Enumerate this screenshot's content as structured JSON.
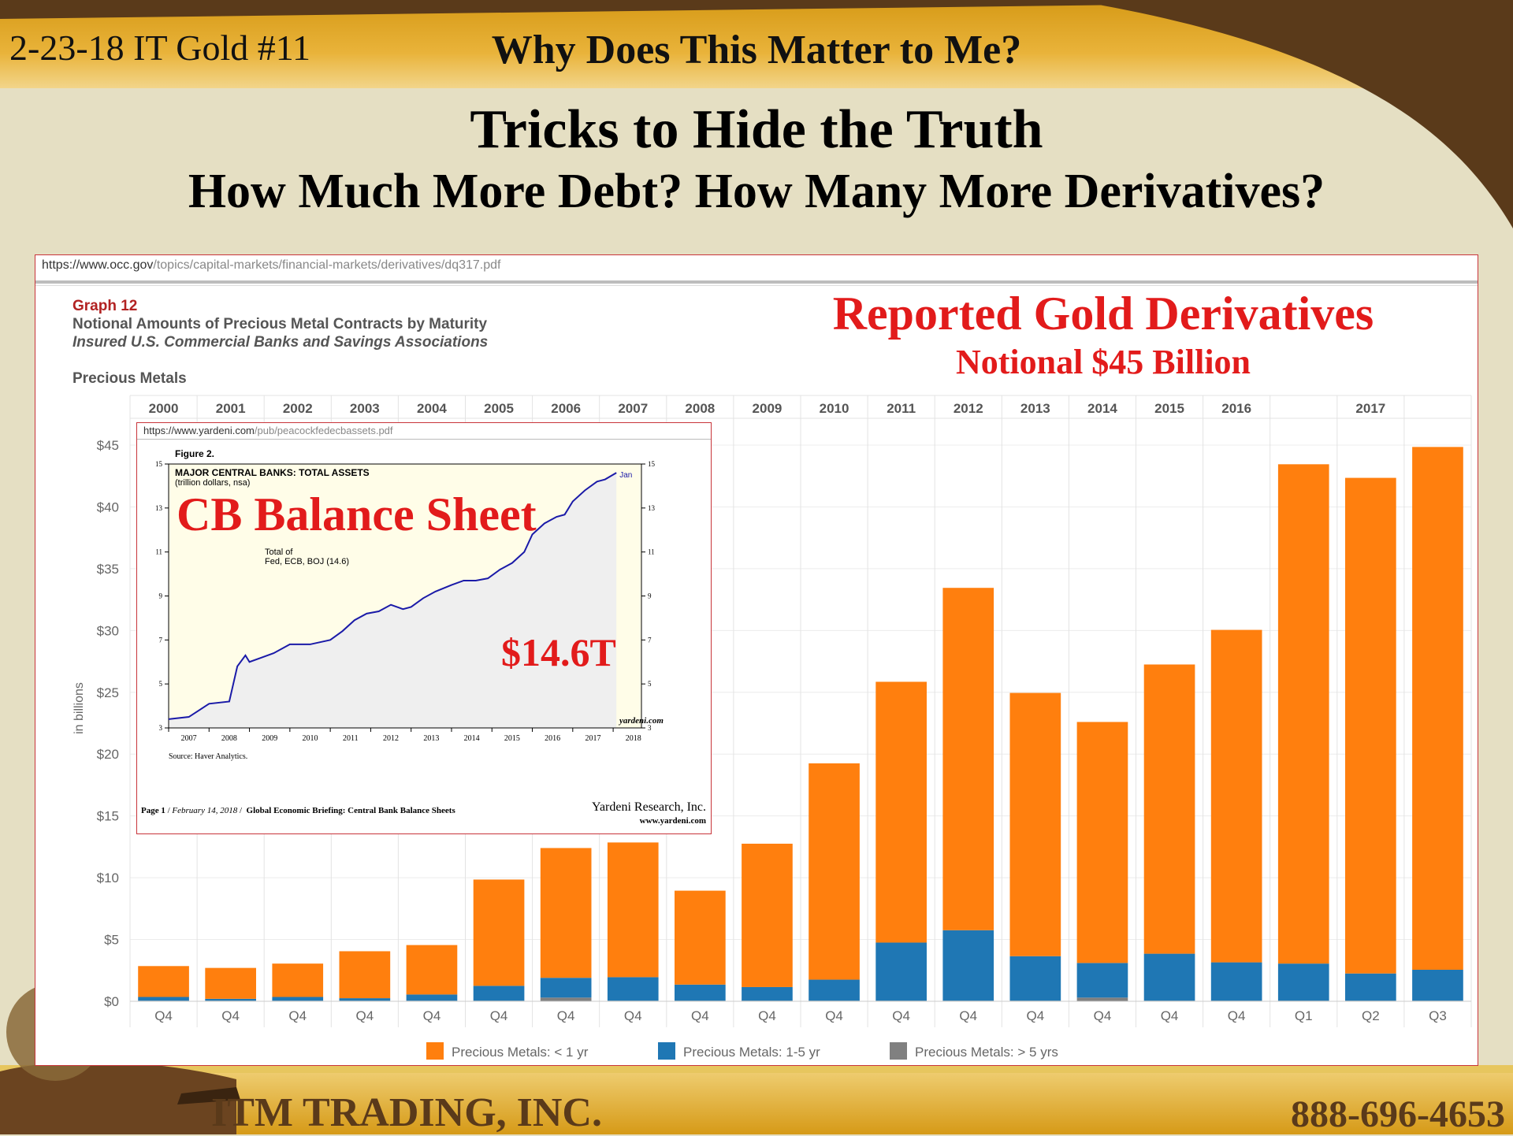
{
  "slide": {
    "header_left": "2-23-18 IT Gold #11",
    "header_center": "Why Does This Matter to Me?",
    "headline": "Tricks to Hide the Truth",
    "subheadline": "How Much More Debt? How Many More Derivatives?",
    "footer_company": "ITM TRADING, INC.",
    "footer_phone": "888-696-4653",
    "colors": {
      "background": "#e5dfc3",
      "banner_gold": "#e0a623",
      "brown": "#5a3a1a",
      "red_text": "#e21b1b"
    }
  },
  "source_url": {
    "domain": "https://www.occ.gov",
    "path": "/topics/capital-markets/financial-markets/derivatives/dq317.pdf"
  },
  "graph_label": "Graph 12",
  "graph_title": "Notional Amounts of Precious Metal Contracts by Maturity",
  "graph_subtitle": "Insured U.S. Commercial Banks and Savings Associations",
  "section_label": "Precious Metals",
  "annotation_title": "Reported Gold Derivatives",
  "annotation_subtitle": "Notional $45 Billion",
  "chart_data": [
    {
      "type": "bar",
      "stacked": true,
      "title": "Graph 12",
      "ylabel": "in billions",
      "ylim": [
        0,
        45
      ],
      "y_ticks": [
        "$0",
        "$5",
        "$10",
        "$15",
        "$20",
        "$25",
        "$30",
        "$35",
        "$40",
        "$45"
      ],
      "years": [
        "2000",
        "2001",
        "2002",
        "2003",
        "2004",
        "2005",
        "2006",
        "2007",
        "2008",
        "2009",
        "2010",
        "2011",
        "2012",
        "2013",
        "2014",
        "2015",
        "2016",
        "2017"
      ],
      "categories": [
        "Q4",
        "Q4",
        "Q4",
        "Q4",
        "Q4",
        "Q4",
        "Q4",
        "Q4",
        "Q4",
        "Q4",
        "Q4",
        "Q4",
        "Q4",
        "Q4",
        "Q4",
        "Q4",
        "Q4",
        "Q1",
        "Q2",
        "Q3"
      ],
      "category_years": [
        "2000",
        "2001",
        "2002",
        "2003",
        "2004",
        "2005",
        "2006",
        "2007",
        "2008",
        "2009",
        "2010",
        "2011",
        "2012",
        "2013",
        "2014",
        "2015",
        "2016",
        "2017",
        "2017",
        "2017"
      ],
      "series": [
        {
          "name": "Precious Metals: > 5 yrs",
          "color": "#808080",
          "values": [
            0.05,
            0.05,
            0.05,
            0.05,
            0.05,
            0.05,
            0.3,
            0.05,
            0.05,
            0.05,
            0.05,
            0.05,
            0.05,
            0.05,
            0.3,
            0.05,
            0.05,
            0.05,
            0.05,
            0.05
          ]
        },
        {
          "name": "Precious Metals: 1-5 yr",
          "color": "#1f77b4",
          "values": [
            0.3,
            0.15,
            0.3,
            0.2,
            0.5,
            1.2,
            1.6,
            1.9,
            1.3,
            1.1,
            1.7,
            4.7,
            5.7,
            3.6,
            2.8,
            3.8,
            3.1,
            3.0,
            2.2,
            2.5
          ]
        },
        {
          "name": "Precious Metals: < 1 yr",
          "color": "#ff7f0e",
          "values": [
            2.5,
            2.5,
            2.7,
            3.8,
            4.0,
            8.6,
            10.5,
            10.9,
            7.6,
            11.6,
            17.5,
            21.1,
            27.7,
            21.3,
            19.5,
            23.4,
            26.9,
            40.4,
            40.1,
            42.3
          ]
        }
      ],
      "legend": "bottom"
    },
    {
      "type": "line",
      "url_domain": "https://www.yardeni.com",
      "url_path": "/pub/peacockfedecbassets.pdf",
      "figure_label": "Figure 2.",
      "title": "MAJOR CENTRAL BANKS: TOTAL ASSETS",
      "subtitle": "(trillion dollars, nsa)",
      "overlay_title": "CB Balance Sheet",
      "series_label_line1": "Total of",
      "series_label_line2": "Fed, ECB, BOJ (14.6)",
      "end_label": "Jan",
      "overlay_value": "$14.6T",
      "brand": "yardeni.com",
      "source": "Source: Haver Analytics.",
      "footer_page": "Page 1",
      "footer_date": "February 14, 2018",
      "footer_title": "Global Economic Briefing: Central Bank Balance Sheets",
      "footer_company": "Yardeni Research, Inc.",
      "footer_web": "www.yardeni.com",
      "ylim": [
        3,
        15
      ],
      "y_ticks": [
        "3",
        "5",
        "7",
        "9",
        "11",
        "13",
        "15"
      ],
      "x_ticks": [
        "2007",
        "2008",
        "2009",
        "2010",
        "2011",
        "2012",
        "2013",
        "2014",
        "2015",
        "2016",
        "2017",
        "2018"
      ],
      "x": [
        2007.0,
        2007.5,
        2008.0,
        2008.5,
        2008.7,
        2008.9,
        2009.0,
        2009.3,
        2009.6,
        2010.0,
        2010.5,
        2011.0,
        2011.3,
        2011.6,
        2011.9,
        2012.2,
        2012.5,
        2012.8,
        2013.0,
        2013.3,
        2013.6,
        2014.0,
        2014.3,
        2014.6,
        2014.9,
        2015.2,
        2015.5,
        2015.8,
        2016.0,
        2016.3,
        2016.6,
        2016.8,
        2017.0,
        2017.3,
        2017.6,
        2017.8,
        2018.08
      ],
      "y": [
        3.4,
        3.5,
        4.1,
        4.2,
        5.8,
        6.3,
        6.0,
        6.2,
        6.4,
        6.8,
        6.8,
        7.0,
        7.4,
        7.9,
        8.2,
        8.3,
        8.6,
        8.4,
        8.5,
        8.9,
        9.2,
        9.5,
        9.7,
        9.7,
        9.8,
        10.2,
        10.5,
        11.0,
        11.8,
        12.3,
        12.6,
        12.7,
        13.3,
        13.8,
        14.2,
        14.3,
        14.6
      ],
      "colors": {
        "line": "#1a1aa8",
        "background": "#fffde8",
        "shade": "#efefef"
      }
    }
  ]
}
